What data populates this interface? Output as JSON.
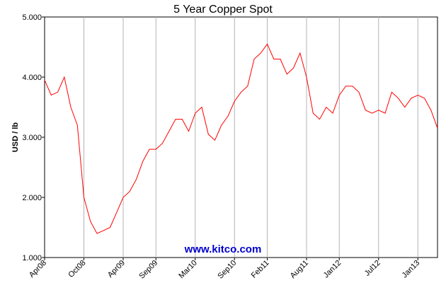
{
  "chart_data": {
    "type": "line",
    "title": "5 Year Copper Spot",
    "xlabel": "",
    "ylabel": "USD / lb",
    "ylim": [
      1.0,
      5.0
    ],
    "yticks": [
      "1.000",
      "2.000",
      "3.000",
      "4.000",
      "5.000"
    ],
    "xticks": [
      "Apr08",
      "Oct08",
      "Apr09",
      "Sep09",
      "Mar10",
      "Sep10",
      "Feb11",
      "Aug11",
      "Jan12",
      "Jul12",
      "Jan13"
    ],
    "xlim": [
      "2008-04",
      "2013-04"
    ],
    "grid": "vertical",
    "line_color": "#ff0000",
    "watermark": "www.kitco.com",
    "watermark_color": "#0000cc",
    "series": [
      {
        "x": [
          "2008-04",
          "2008-05",
          "2008-06",
          "2008-07",
          "2008-08",
          "2008-09",
          "2008-10",
          "2008-11",
          "2008-12",
          "2009-01",
          "2009-02",
          "2009-03",
          "2009-04",
          "2009-05",
          "2009-06",
          "2009-07",
          "2009-08",
          "2009-09",
          "2009-10",
          "2009-11",
          "2009-12",
          "2010-01",
          "2010-02",
          "2010-03",
          "2010-04",
          "2010-05",
          "2010-06",
          "2010-07",
          "2010-08",
          "2010-09",
          "2010-10",
          "2010-11",
          "2010-12",
          "2011-01",
          "2011-02",
          "2011-03",
          "2011-04",
          "2011-05",
          "2011-06",
          "2011-07",
          "2011-08",
          "2011-09",
          "2011-10",
          "2011-11",
          "2011-12",
          "2012-01",
          "2012-02",
          "2012-03",
          "2012-04",
          "2012-05",
          "2012-06",
          "2012-07",
          "2012-08",
          "2012-09",
          "2012-10",
          "2012-11",
          "2012-12",
          "2013-01",
          "2013-02",
          "2013-03",
          "2013-04"
        ],
        "values": [
          3.95,
          3.7,
          3.75,
          4.0,
          3.5,
          3.2,
          2.0,
          1.6,
          1.4,
          1.45,
          1.5,
          1.75,
          2.0,
          2.1,
          2.3,
          2.6,
          2.8,
          2.8,
          2.9,
          3.1,
          3.3,
          3.3,
          3.1,
          3.4,
          3.5,
          3.05,
          2.95,
          3.2,
          3.35,
          3.6,
          3.75,
          3.85,
          4.3,
          4.4,
          4.55,
          4.3,
          4.3,
          4.05,
          4.15,
          4.4,
          4.0,
          3.4,
          3.3,
          3.5,
          3.4,
          3.7,
          3.85,
          3.85,
          3.75,
          3.45,
          3.4,
          3.45,
          3.4,
          3.75,
          3.65,
          3.5,
          3.65,
          3.7,
          3.65,
          3.45,
          3.15
        ]
      }
    ]
  }
}
